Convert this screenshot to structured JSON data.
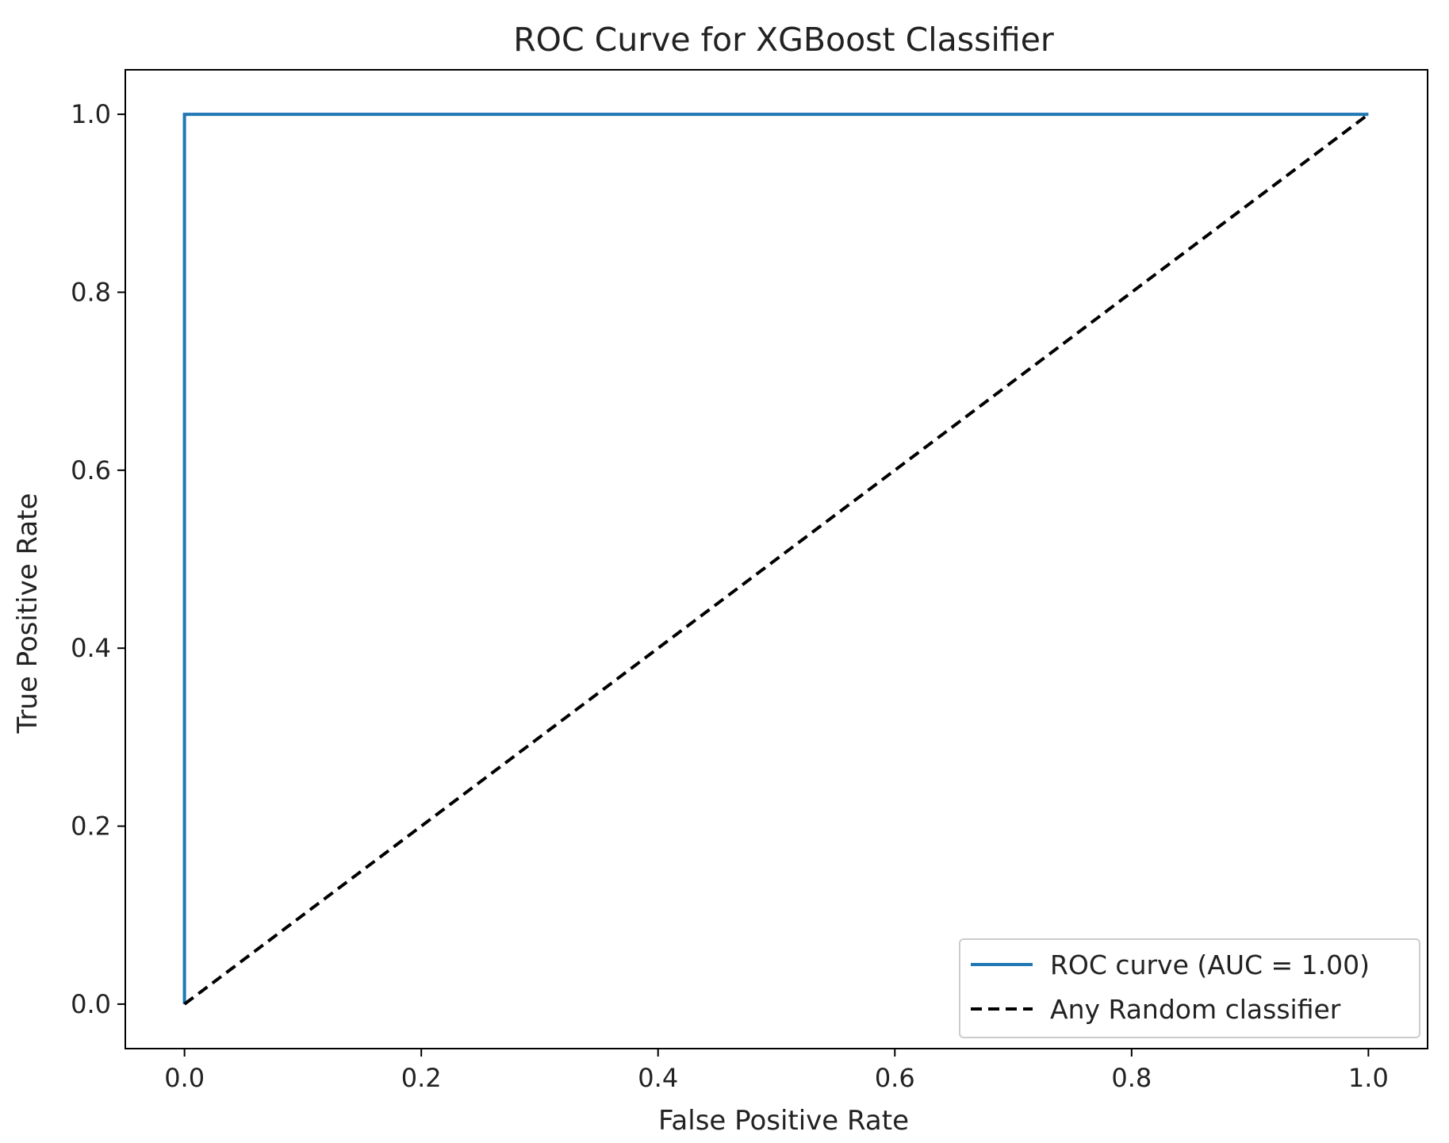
{
  "chart_data": {
    "type": "line",
    "title": "ROC Curve for XGBoost Classifier",
    "xlabel": "False Positive Rate",
    "ylabel": "True Positive Rate",
    "xlim": [
      -0.05,
      1.05
    ],
    "ylim": [
      -0.05,
      1.05
    ],
    "xticks": [
      "0.0",
      "0.2",
      "0.4",
      "0.6",
      "0.8",
      "1.0"
    ],
    "yticks": [
      "0.0",
      "0.2",
      "0.4",
      "0.6",
      "0.8",
      "1.0"
    ],
    "grid": false,
    "legend_position": "bottom-right",
    "series": [
      {
        "name": "ROC curve (AUC = 1.00)",
        "color": "#1f77b4",
        "style": "solid",
        "x": [
          0.0,
          0.0,
          1.0
        ],
        "y": [
          0.0,
          1.0,
          1.0
        ]
      },
      {
        "name": "Any Random classifier",
        "color": "#000000",
        "style": "dashed",
        "x": [
          0.0,
          1.0
        ],
        "y": [
          0.0,
          1.0
        ]
      }
    ]
  }
}
